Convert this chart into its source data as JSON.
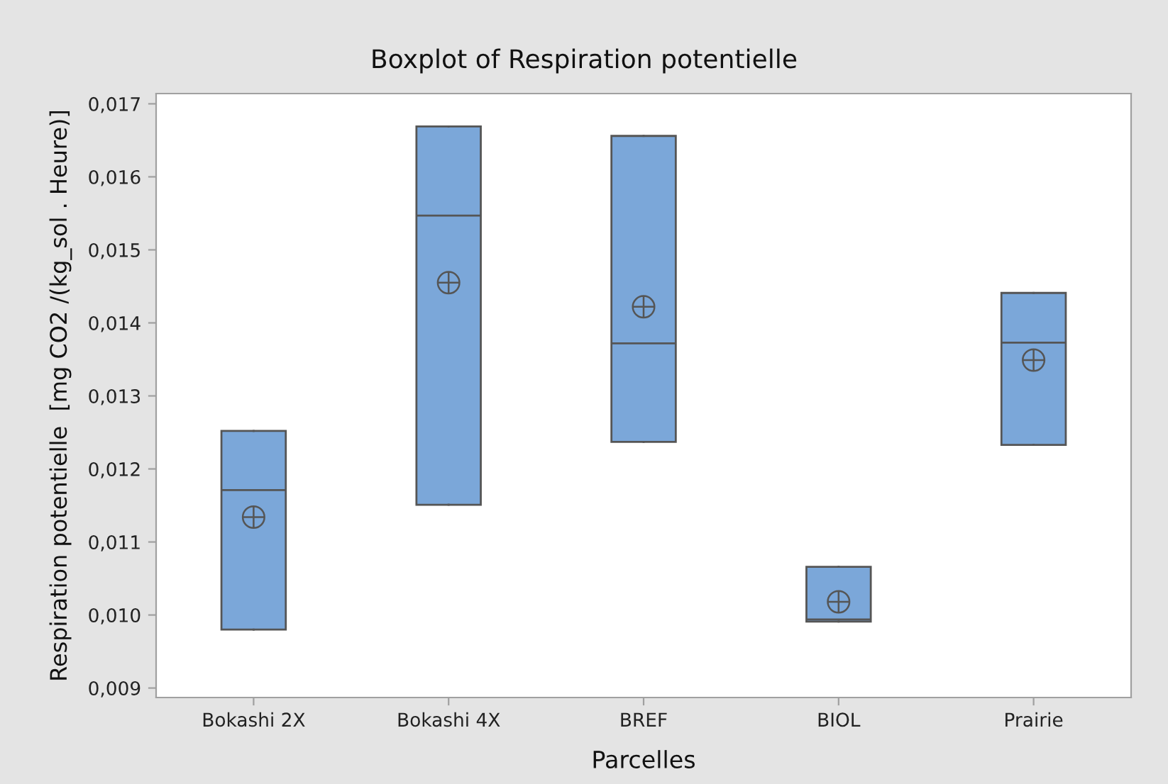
{
  "chart_data": {
    "type": "box",
    "title": "Boxplot of Respiration potentielle",
    "xlabel": "Parcelles",
    "ylabel": "Respiration potentielle  [mg CO2 /(kg_sol . Heure)]",
    "categories": [
      "Bokashi 2X",
      "Bokashi 4X",
      "BREF",
      "BIOL",
      "Prairie"
    ],
    "series": [
      {
        "color": "#7ba7d9",
        "boxes": [
          {
            "low": 0.0098,
            "q1": 0.0098,
            "median": 0.01171,
            "q3": 0.01252,
            "high": 0.01252,
            "mean": 0.01134
          },
          {
            "low": 0.01151,
            "q1": 0.01151,
            "median": 0.01547,
            "q3": 0.01669,
            "high": 0.01669,
            "mean": 0.01455
          },
          {
            "low": 0.01237,
            "q1": 0.01237,
            "median": 0.01372,
            "q3": 0.01656,
            "high": 0.01656,
            "mean": 0.01422
          },
          {
            "low": 0.00991,
            "q1": 0.00991,
            "median": 0.00994,
            "q3": 0.01066,
            "high": 0.01066,
            "mean": 0.01018
          },
          {
            "low": 0.01233,
            "q1": 0.01233,
            "median": 0.01373,
            "q3": 0.01441,
            "high": 0.01441,
            "mean": 0.01349
          }
        ]
      }
    ],
    "ylim": [
      0.00887,
      0.01714
    ],
    "yticks": [
      {
        "value": 0.009,
        "label": "0,009"
      },
      {
        "value": 0.01,
        "label": "0,010"
      },
      {
        "value": 0.011,
        "label": "0,011"
      },
      {
        "value": 0.012,
        "label": "0,012"
      },
      {
        "value": 0.013,
        "label": "0,013"
      },
      {
        "value": 0.014,
        "label": "0,014"
      },
      {
        "value": 0.015,
        "label": "0,015"
      },
      {
        "value": 0.016,
        "label": "0,016"
      },
      {
        "value": 0.017,
        "label": "0,017"
      }
    ]
  }
}
